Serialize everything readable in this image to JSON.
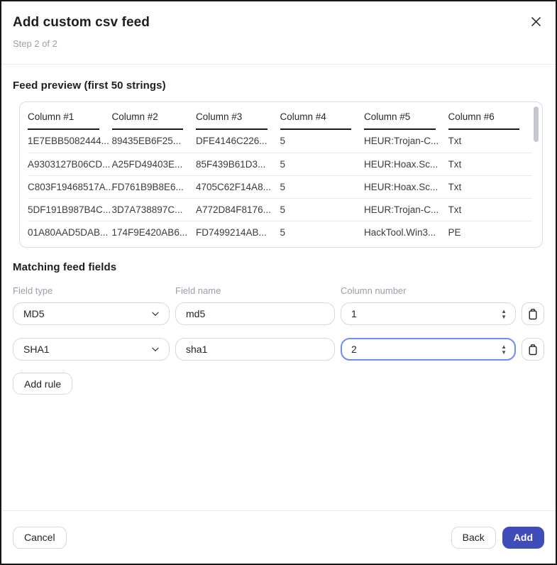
{
  "dialog": {
    "title": "Add custom csv feed",
    "step": "Step 2 of 2"
  },
  "icons": {
    "close": "x-cross",
    "chevron": "chevron-down",
    "trash": "trash-can",
    "stepper_up": "▲",
    "stepper_down": "▼"
  },
  "feed_preview": {
    "heading": "Feed preview (first 50 strings)",
    "table": {
      "headers": [
        "Column #1",
        "Column #2",
        "Column #3",
        "Column #4",
        "Column #5",
        "Column #6"
      ],
      "rows": [
        [
          "1E7EBB5082444...",
          "89435EB6F25...",
          "DFE4146C226...",
          "5",
          "HEUR:Trojan-C...",
          "Txt"
        ],
        [
          "A9303127B06CD...",
          "A25FD49403E...",
          "85F439B61D3...",
          "5",
          "HEUR:Hoax.Sc...",
          "Txt"
        ],
        [
          "C803F19468517A...",
          "FD761B9B8E6...",
          "4705C62F14A8...",
          "5",
          "HEUR:Hoax.Sc...",
          "Txt"
        ],
        [
          "5DF191B987B4C...",
          "3D7A738897C...",
          "A772D84F8176...",
          "5",
          "HEUR:Trojan-C...",
          "Txt"
        ],
        [
          "01A80AAD5DAB...",
          "174F9E420AB6...",
          "FD7499214AB...",
          "5",
          "HackTool.Win3...",
          "PE"
        ]
      ]
    }
  },
  "matching": {
    "heading": "Matching feed fields",
    "labels": {
      "field_type": "Field type",
      "field_name": "Field name",
      "column_number": "Column number"
    },
    "rules": [
      {
        "field_type": "MD5",
        "field_name": "md5",
        "column_number": "1",
        "focused": false
      },
      {
        "field_type": "SHA1",
        "field_name": "sha1",
        "column_number": "2",
        "focused": true
      }
    ],
    "add_rule_label": "Add rule"
  },
  "footer": {
    "cancel_label": "Cancel",
    "back_label": "Back",
    "add_label": "Add"
  },
  "colors": {
    "accent": "#3e4db8",
    "focus_border": "#6d8df5",
    "divider": "#e9ebf1",
    "header_rule": "#17181c"
  }
}
